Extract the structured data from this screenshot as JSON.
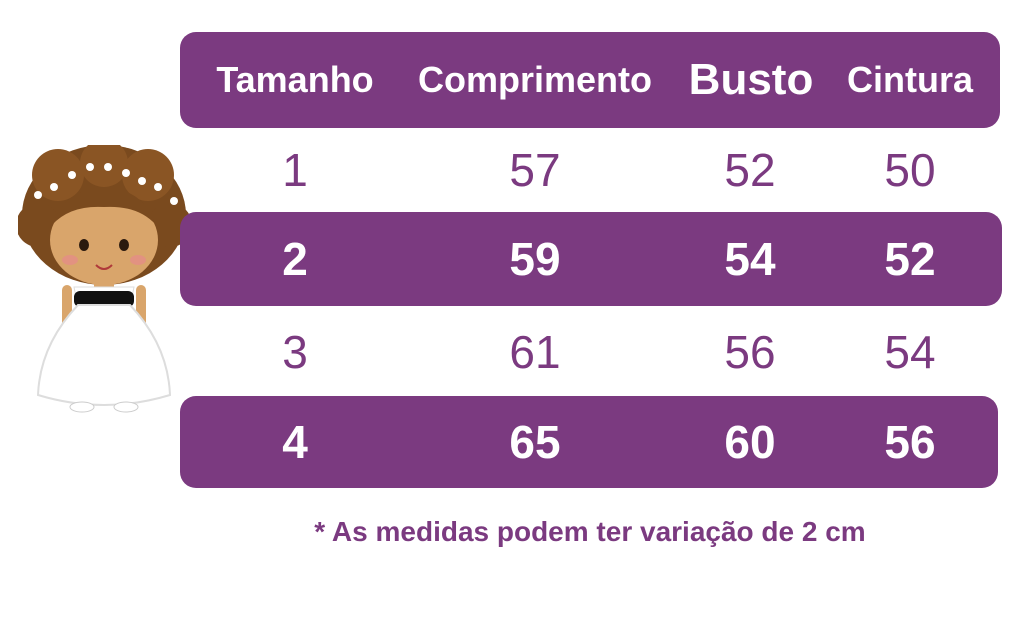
{
  "table": {
    "headers": [
      "Tamanho",
      "Comprimento",
      "Busto",
      "Cintura"
    ],
    "rows": [
      [
        "1",
        "57",
        "52",
        "50"
      ],
      [
        "2",
        "59",
        "54",
        "52"
      ],
      [
        "3",
        "61",
        "56",
        "54"
      ],
      [
        "4",
        "65",
        "60",
        "56"
      ]
    ]
  },
  "note": "* As medidas podem ter variação de 2 cm",
  "colors": {
    "accent": "#7b3a80",
    "text_on_accent": "#ffffff"
  },
  "illustration": "girl-in-white-dress-illustration"
}
